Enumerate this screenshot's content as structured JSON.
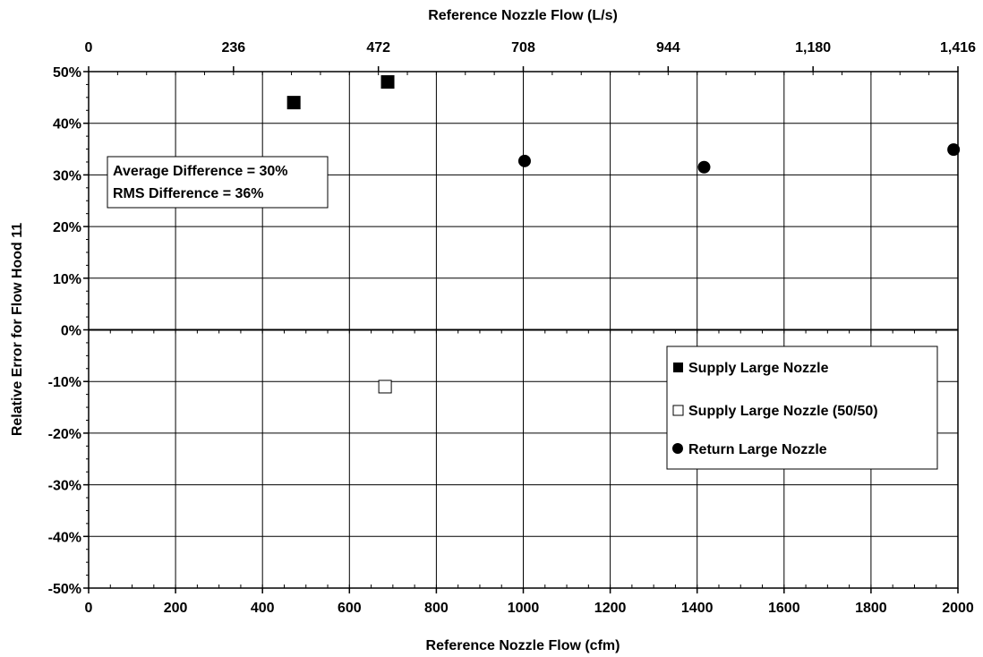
{
  "chart_data": {
    "type": "scatter",
    "title": "",
    "xlabel": "Reference Nozzle Flow (cfm)",
    "x2label": "Reference Nozzle Flow (L/s)",
    "ylabel": "Relative Error for Flow Hood 11",
    "xlim": [
      0,
      2000
    ],
    "ylim": [
      -0.5,
      0.5
    ],
    "x_ticks": [
      0,
      200,
      400,
      600,
      800,
      1000,
      1200,
      1400,
      1600,
      1800,
      2000
    ],
    "x_tick_labels": [
      "0",
      "200",
      "400",
      "600",
      "800",
      "1000",
      "1200",
      "1400",
      "1600",
      "1800",
      "2000"
    ],
    "x2_tick_labels": [
      "0",
      "236",
      "472",
      "708",
      "944",
      "1,180",
      "1,416"
    ],
    "y_ticks": [
      0.5,
      0.4,
      0.3,
      0.2,
      0.1,
      0,
      -0.1,
      -0.2,
      -0.3,
      -0.4,
      -0.5
    ],
    "y_tick_labels": [
      "50%",
      "40%",
      "30%",
      "20%",
      "10%",
      "0%",
      "-10%",
      "-20%",
      "-30%",
      "-40%",
      "-50%"
    ],
    "grid": true,
    "legend_position": "lower-right",
    "series": [
      {
        "name": "Supply Large Nozzle",
        "marker": "filled-square",
        "color": "#000000",
        "points": [
          [
            472,
            0.44
          ],
          [
            688,
            0.48
          ]
        ]
      },
      {
        "name": "Supply Large Nozzle (50/50)",
        "marker": "open-square",
        "color": "#000000",
        "points": [
          [
            682,
            -0.11
          ]
        ]
      },
      {
        "name": "Return Large Nozzle",
        "marker": "filled-circle",
        "color": "#000000",
        "points": [
          [
            1003,
            0.327
          ],
          [
            1416,
            0.315
          ],
          [
            1990,
            0.349
          ]
        ]
      }
    ],
    "annotations": [
      "Average Difference = 30%",
      "RMS Difference = 36%"
    ]
  }
}
